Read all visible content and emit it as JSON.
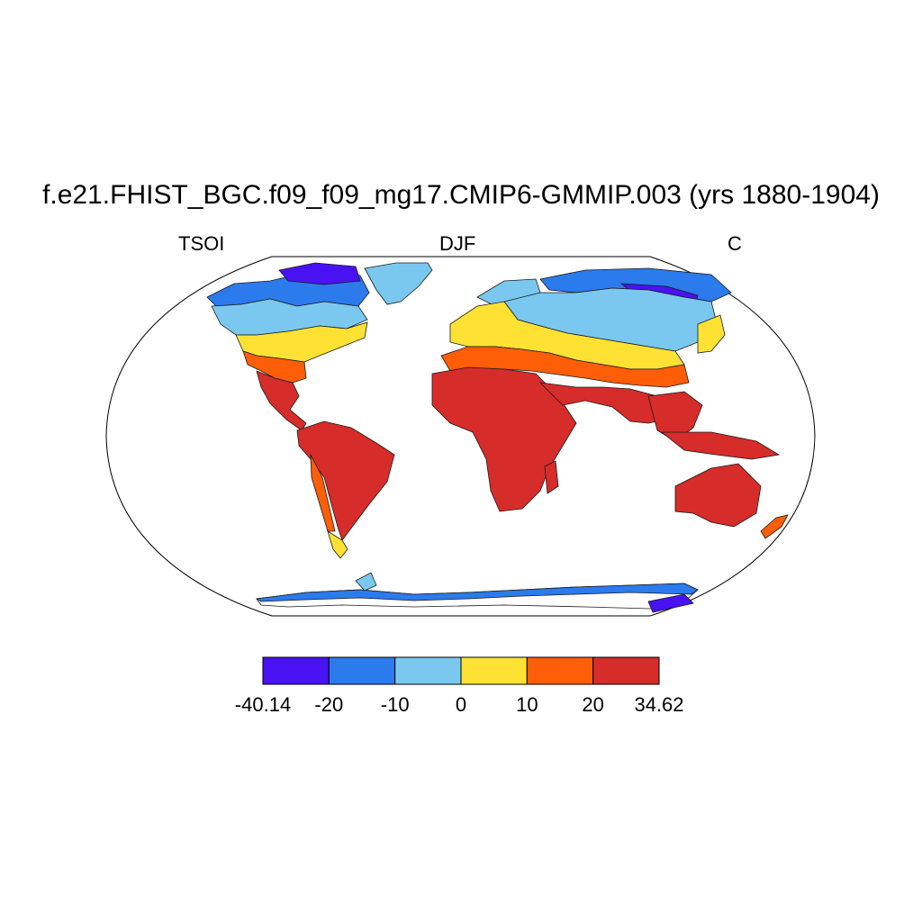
{
  "title": "f.e21.FHIST_BGC.f09_f09_mg17.CMIP6-GMMIP.003 (yrs 1880-1904)",
  "subtitle_left": "TSOI",
  "subtitle_center": "DJF",
  "subtitle_right": "C",
  "colorbar": {
    "colors": [
      "#4812f2",
      "#2b7bec",
      "#7ac8ef",
      "#fde234",
      "#fe5e07",
      "#d62c2a"
    ],
    "labels": [
      "-40.14",
      "-20",
      "-10",
      "0",
      "10",
      "20",
      "34.62"
    ]
  },
  "map": {
    "projection": "robinson",
    "ocean_color": "#ffffff"
  }
}
